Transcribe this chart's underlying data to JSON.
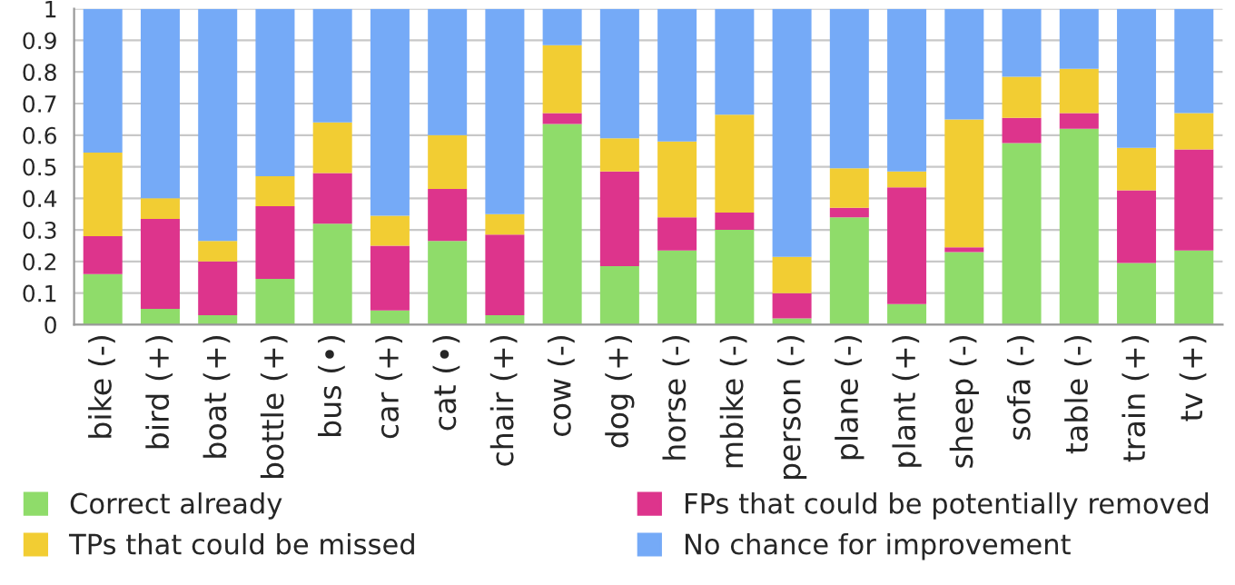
{
  "chart_data": {
    "type": "bar",
    "stacked": true,
    "categories": [
      "bike (-)",
      "bird (+)",
      "boat (+)",
      "bottle (+)",
      "bus (•)",
      "car (+)",
      "cat (•)",
      "chair (+)",
      "cow (-)",
      "dog (+)",
      "horse (-)",
      "mbike (-)",
      "person (-)",
      "plane (-)",
      "plant (+)",
      "sheep (-)",
      "sofa (-)",
      "table (-)",
      "train (+)",
      "tv (+)"
    ],
    "series": [
      {
        "name": "Correct already",
        "color": "#8fdc6a",
        "values": [
          0.16,
          0.05,
          0.03,
          0.145,
          0.32,
          0.045,
          0.265,
          0.03,
          0.635,
          0.185,
          0.235,
          0.3,
          0.02,
          0.34,
          0.065,
          0.23,
          0.575,
          0.62,
          0.195,
          0.235
        ]
      },
      {
        "name": "FPs that could be potentially removed",
        "color": "#dd348c",
        "values": [
          0.12,
          0.285,
          0.17,
          0.23,
          0.16,
          0.205,
          0.165,
          0.255,
          0.035,
          0.3,
          0.105,
          0.055,
          0.08,
          0.03,
          0.37,
          0.015,
          0.08,
          0.05,
          0.23,
          0.32
        ]
      },
      {
        "name": "TPs that could be missed",
        "color": "#f2cd33",
        "values": [
          0.265,
          0.065,
          0.065,
          0.095,
          0.16,
          0.095,
          0.17,
          0.065,
          0.215,
          0.105,
          0.24,
          0.31,
          0.115,
          0.125,
          0.05,
          0.405,
          0.13,
          0.14,
          0.135,
          0.115
        ]
      },
      {
        "name": "No chance for improvement",
        "color": "#75aaf7",
        "values": [
          0.455,
          0.6,
          0.735,
          0.53,
          0.36,
          0.655,
          0.4,
          0.65,
          0.115,
          0.41,
          0.42,
          0.335,
          0.785,
          0.505,
          0.515,
          0.35,
          0.215,
          0.19,
          0.44,
          0.33
        ]
      }
    ],
    "ylim": [
      0,
      1
    ],
    "yticks": [
      0,
      0.1,
      0.2,
      0.3,
      0.4,
      0.5,
      0.6,
      0.7,
      0.8,
      0.9,
      1
    ],
    "grid": "y",
    "legend": "bottom"
  }
}
